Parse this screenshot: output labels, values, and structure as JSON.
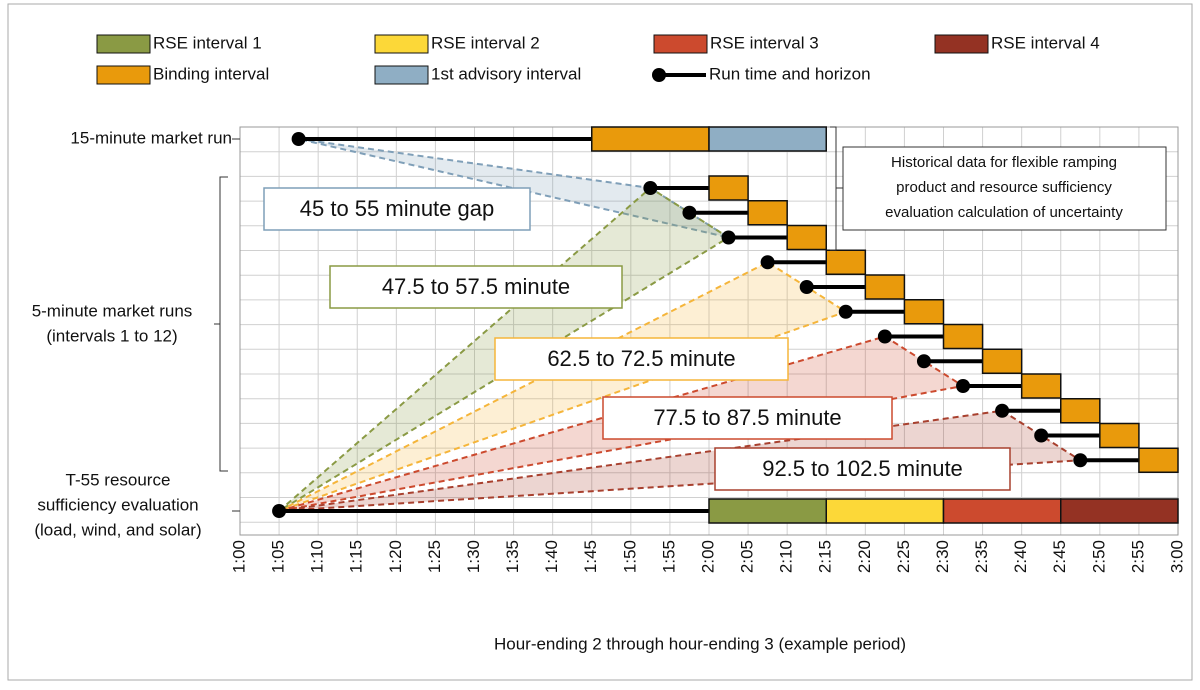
{
  "legend": {
    "items": [
      {
        "label": "RSE interval 1"
      },
      {
        "label": "RSE interval 2"
      },
      {
        "label": "RSE interval 3"
      },
      {
        "label": "RSE interval 4"
      },
      {
        "label": "Binding interval"
      },
      {
        "label": "1st advisory interval"
      },
      {
        "label": "Run time and horizon"
      }
    ]
  },
  "row_labels": {
    "fifteen_minute": "15-minute market run",
    "five_minute": [
      "5-minute market runs",
      "(intervals 1 to 12)"
    ],
    "rse": [
      "T-55 resource",
      "sufficiency evaluation",
      "(load, wind, and solar)"
    ]
  },
  "annotations": [
    "45 to 55 minute gap",
    "47.5 to 57.5 minute",
    "62.5 to 72.5 minute",
    "77.5 to 87.5 minute",
    "92.5 to 102.5 minute"
  ],
  "note": [
    "Historical data for flexible ramping",
    "product and resource sufficiency",
    "evaluation calculation of uncertainty"
  ],
  "x_axis": {
    "ticks": [
      "1:00",
      "1:05",
      "1:10",
      "1:15",
      "1:20",
      "1:25",
      "1:30",
      "1:35",
      "1:40",
      "1:45",
      "1:50",
      "1:55",
      "2:00",
      "2:05",
      "2:10",
      "2:15",
      "2:20",
      "2:25",
      "2:30",
      "2:35",
      "2:40",
      "2:45",
      "2:50",
      "2:55",
      "3:00"
    ],
    "title": "Hour-ending 2 through hour-ending 3 (example period)"
  }
}
